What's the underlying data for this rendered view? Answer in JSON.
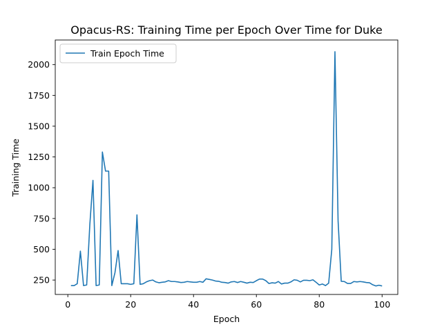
{
  "chart_data": {
    "type": "line",
    "title": "Opacus-RS: Training Time per Epoch Over Time for Duke",
    "xlabel": "Epoch",
    "ylabel": "Training Time",
    "xlim": [
      -4,
      105
    ],
    "ylim": [
      133,
      2200
    ],
    "xticks": [
      0,
      20,
      40,
      60,
      80,
      100
    ],
    "yticks": [
      250,
      500,
      750,
      1000,
      1250,
      1500,
      1750,
      2000
    ],
    "grid": false,
    "legend": "top-left",
    "series": [
      {
        "name": "Train Epoch Time",
        "color": "#1f77b4",
        "x": [
          1,
          2,
          3,
          4,
          5,
          6,
          7,
          8,
          9,
          10,
          11,
          12,
          13,
          14,
          15,
          16,
          17,
          18,
          19,
          20,
          21,
          22,
          23,
          24,
          25,
          26,
          27,
          28,
          29,
          30,
          31,
          32,
          33,
          34,
          35,
          36,
          37,
          38,
          39,
          40,
          41,
          42,
          43,
          44,
          45,
          46,
          47,
          48,
          49,
          50,
          51,
          52,
          53,
          54,
          55,
          56,
          57,
          58,
          59,
          60,
          61,
          62,
          63,
          64,
          65,
          66,
          67,
          68,
          69,
          70,
          71,
          72,
          73,
          74,
          75,
          76,
          77,
          78,
          79,
          80,
          81,
          82,
          83,
          84,
          85,
          86,
          87,
          88,
          89,
          90,
          91,
          92,
          93,
          94,
          95,
          96,
          97,
          98,
          99,
          100
        ],
        "values": [
          205,
          205,
          220,
          485,
          205,
          210,
          700,
          1060,
          205,
          210,
          1290,
          1135,
          1135,
          205,
          310,
          490,
          220,
          220,
          220,
          215,
          220,
          780,
          215,
          220,
          235,
          245,
          250,
          235,
          228,
          232,
          235,
          245,
          238,
          238,
          235,
          230,
          232,
          238,
          235,
          232,
          232,
          238,
          232,
          260,
          255,
          250,
          242,
          240,
          232,
          230,
          225,
          235,
          238,
          230,
          238,
          232,
          225,
          232,
          230,
          245,
          258,
          258,
          245,
          222,
          228,
          225,
          238,
          218,
          225,
          225,
          235,
          252,
          248,
          235,
          248,
          248,
          245,
          252,
          232,
          210,
          218,
          205,
          225,
          500,
          2105,
          730,
          240,
          238,
          222,
          222,
          238,
          235,
          238,
          235,
          230,
          228,
          212,
          202,
          208,
          202
        ]
      }
    ]
  }
}
